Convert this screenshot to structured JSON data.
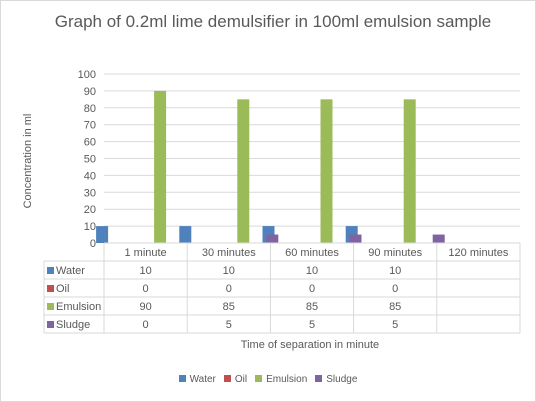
{
  "chart_data": {
    "type": "bar",
    "title": "Graph of 0.2ml lime demulsifier in 100ml emulsion sample",
    "xlabel": "Time of separation in minute",
    "ylabel": "Concentration in ml",
    "categories": [
      "1 minute",
      "30 minutes",
      "60 minutes",
      "90 minutes",
      "120 minutes"
    ],
    "ylim": [
      0,
      100
    ],
    "yticks": [
      0,
      10,
      20,
      30,
      40,
      50,
      60,
      70,
      80,
      90,
      100
    ],
    "grid": true,
    "legend": "bottom",
    "data_table": true,
    "series": [
      {
        "name": "Water",
        "color": "#4f81bd",
        "values": [
          10,
          10,
          10,
          10,
          null
        ]
      },
      {
        "name": "Oil",
        "color": "#c0504d",
        "values": [
          0,
          0,
          0,
          0,
          null
        ]
      },
      {
        "name": "Emulsion",
        "color": "#9bbb59",
        "values": [
          90,
          85,
          85,
          85,
          null
        ]
      },
      {
        "name": "Sludge",
        "color": "#8064a2",
        "values": [
          0,
          5,
          5,
          5,
          null
        ]
      }
    ]
  }
}
